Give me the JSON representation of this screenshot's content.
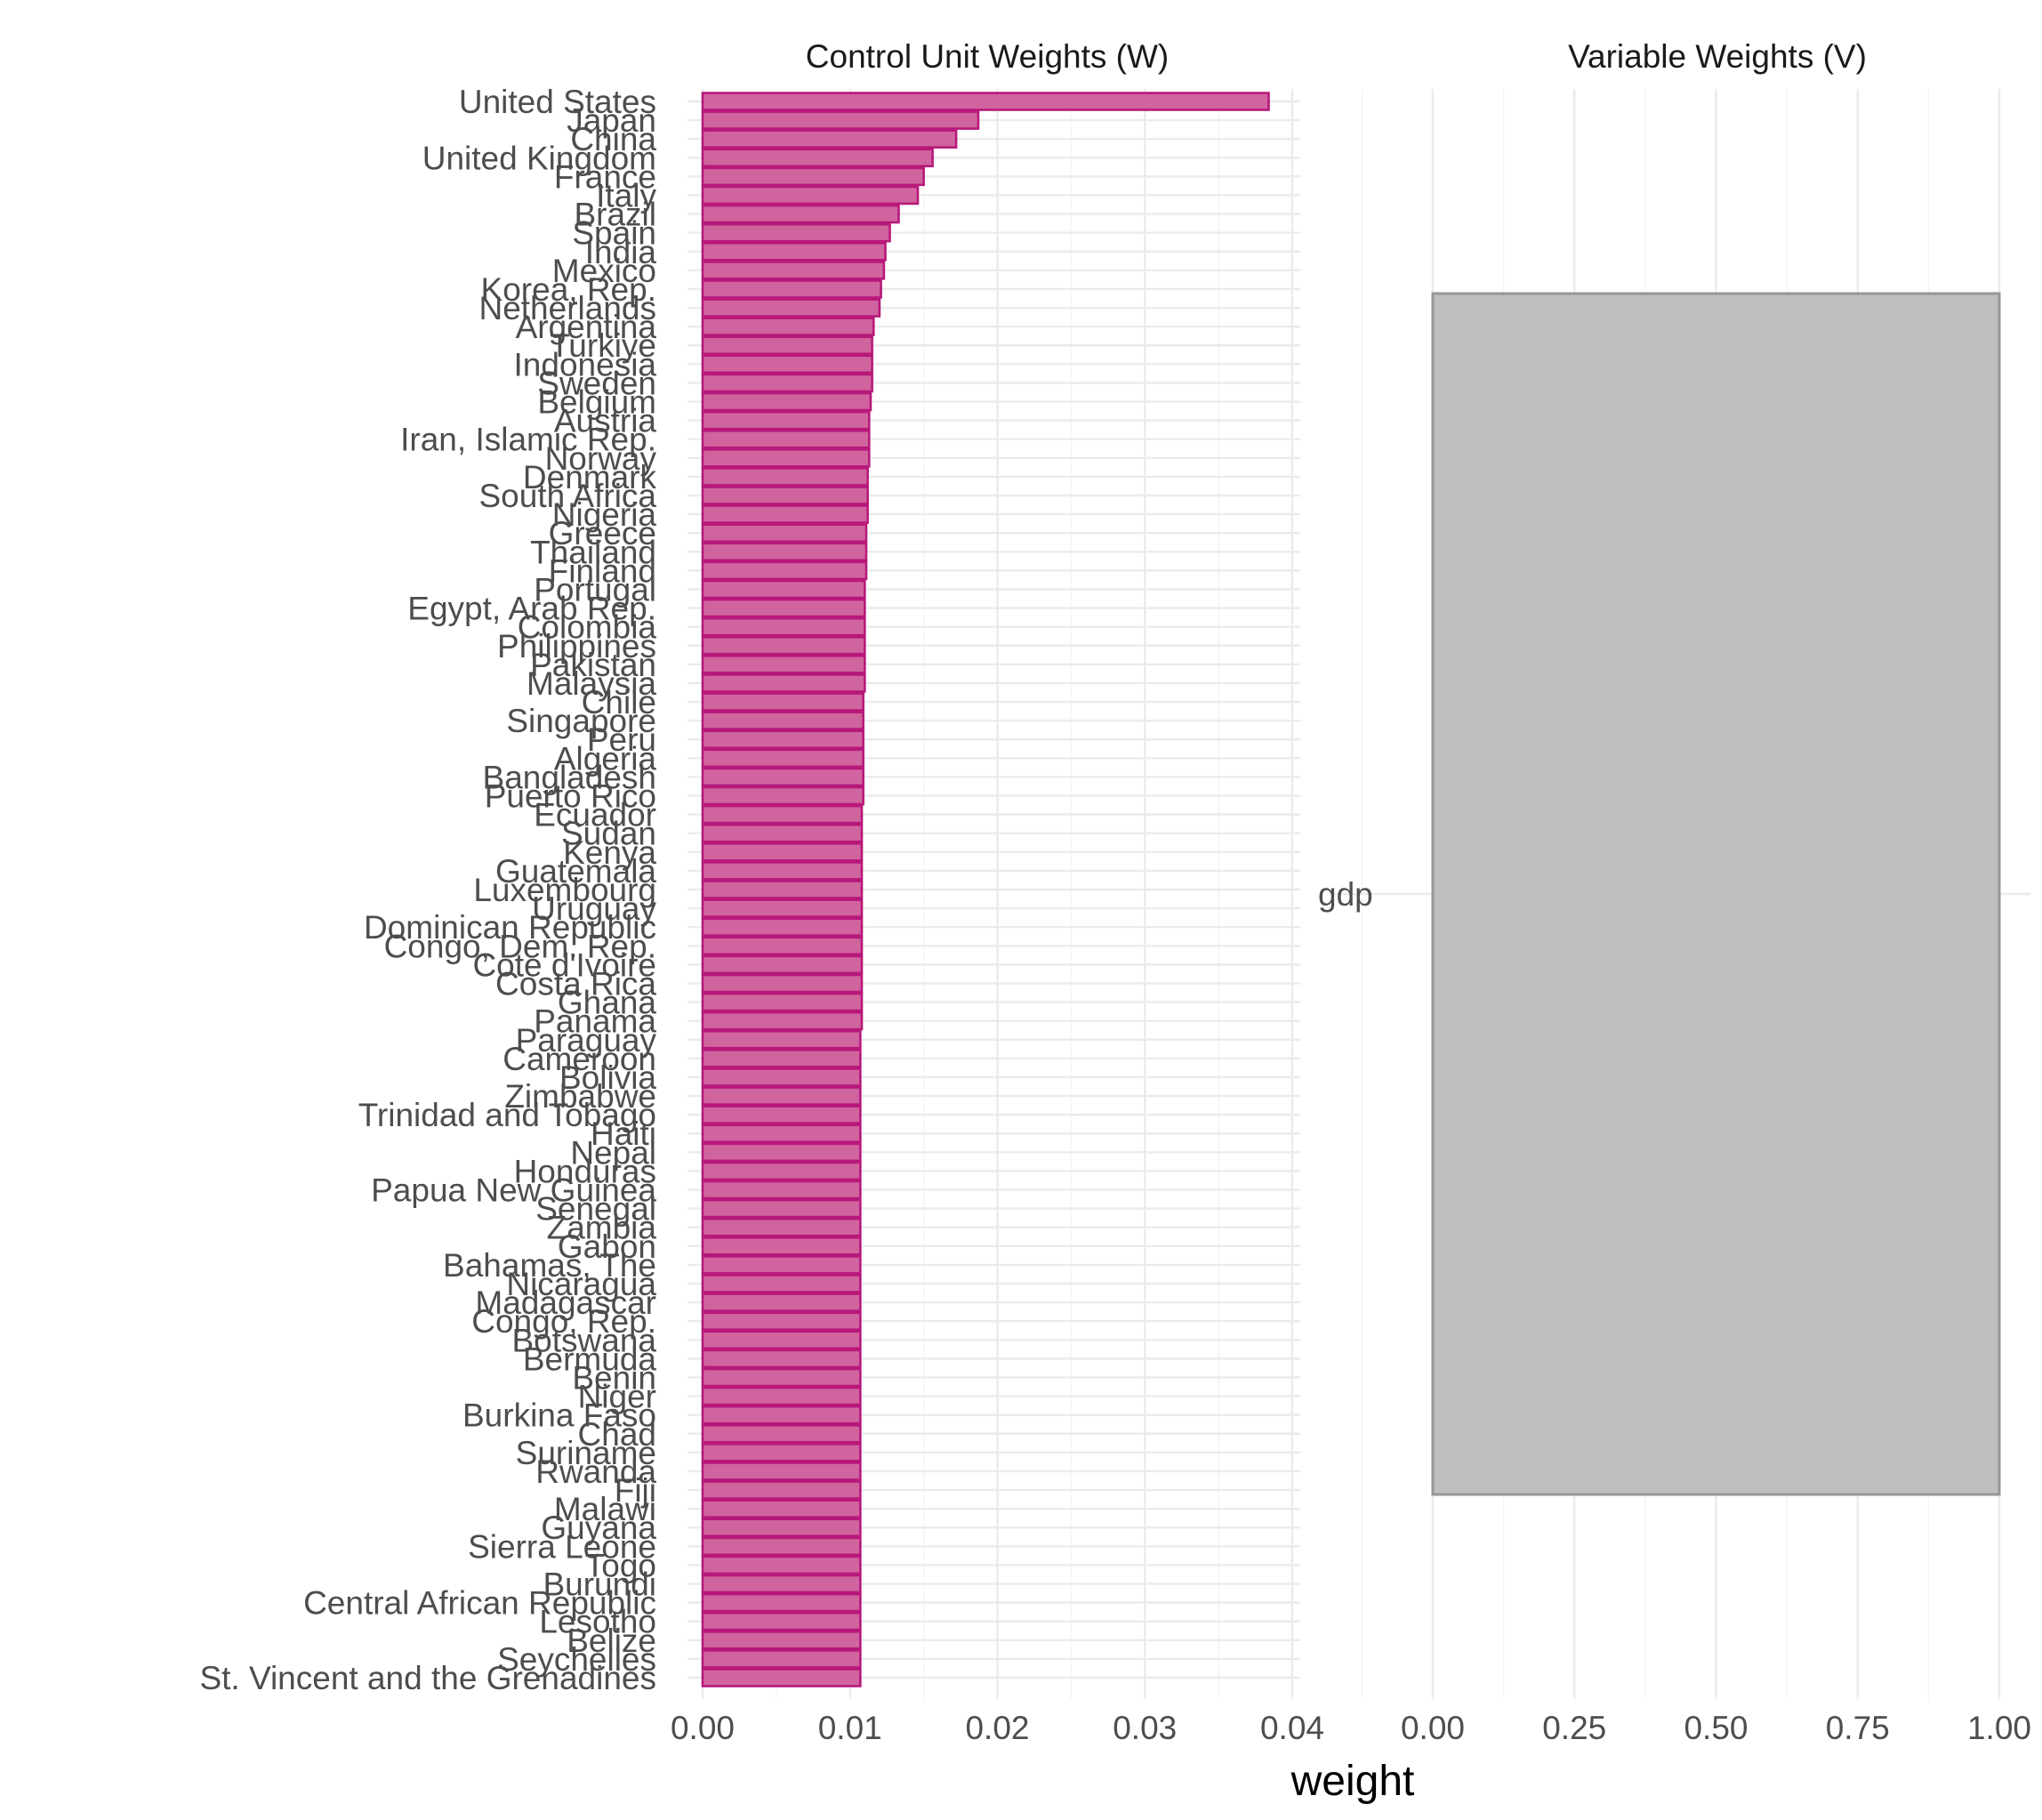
{
  "chart_data": [
    {
      "type": "bar",
      "orientation": "horizontal",
      "title": "Control Unit Weights (W)",
      "xlabel": "weight",
      "xlim": [
        0,
        0.04
      ],
      "xticks": [
        "0.00",
        "0.01",
        "0.02",
        "0.03",
        "0.04"
      ],
      "grid": true,
      "bar_fill": "#d0649f",
      "bar_stroke": "#b7197a",
      "categories": [
        "United States",
        "Japan",
        "China",
        "United Kingdom",
        "France",
        "Italy",
        "Brazil",
        "Spain",
        "India",
        "Mexico",
        "Korea, Rep.",
        "Netherlands",
        "Argentina",
        "Turkiye",
        "Indonesia",
        "Sweden",
        "Belgium",
        "Austria",
        "Iran, Islamic Rep.",
        "Norway",
        "Denmark",
        "South Africa",
        "Nigeria",
        "Greece",
        "Thailand",
        "Finland",
        "Portugal",
        "Egypt, Arab Rep.",
        "Colombia",
        "Philippines",
        "Pakistan",
        "Malaysia",
        "Chile",
        "Singapore",
        "Peru",
        "Algeria",
        "Bangladesh",
        "Puerto Rico",
        "Ecuador",
        "Sudan",
        "Kenya",
        "Guatemala",
        "Luxembourg",
        "Uruguay",
        "Dominican Republic",
        "Congo, Dem. Rep.",
        "Cote d'Ivoire",
        "Costa Rica",
        "Ghana",
        "Panama",
        "Paraguay",
        "Cameroon",
        "Bolivia",
        "Zimbabwe",
        "Trinidad and Tobago",
        "Haiti",
        "Nepal",
        "Honduras",
        "Papua New Guinea",
        "Senegal",
        "Zambia",
        "Gabon",
        "Bahamas, The",
        "Nicaragua",
        "Madagascar",
        "Congo, Rep.",
        "Botswana",
        "Bermuda",
        "Benin",
        "Niger",
        "Burkina Faso",
        "Chad",
        "Suriname",
        "Rwanda",
        "Fiji",
        "Malawi",
        "Guyana",
        "Sierra Leone",
        "Togo",
        "Burundi",
        "Central African Republic",
        "Lesotho",
        "Belize",
        "Seychelles",
        "St. Vincent and the Grenadines"
      ],
      "values": [
        0.0384,
        0.0187,
        0.0172,
        0.0156,
        0.015,
        0.0146,
        0.0133,
        0.0127,
        0.0124,
        0.0123,
        0.0121,
        0.012,
        0.0116,
        0.0115,
        0.0115,
        0.0115,
        0.0114,
        0.0113,
        0.0113,
        0.0113,
        0.0112,
        0.0112,
        0.0112,
        0.0111,
        0.0111,
        0.0111,
        0.011,
        0.011,
        0.011,
        0.011,
        0.011,
        0.011,
        0.0109,
        0.0109,
        0.0109,
        0.0109,
        0.0109,
        0.0109,
        0.0108,
        0.0108,
        0.0108,
        0.0108,
        0.0108,
        0.0108,
        0.0108,
        0.0108,
        0.0108,
        0.0108,
        0.0108,
        0.0108,
        0.0107,
        0.0107,
        0.0107,
        0.0107,
        0.0107,
        0.0107,
        0.0107,
        0.0107,
        0.0107,
        0.0107,
        0.0107,
        0.0107,
        0.0107,
        0.0107,
        0.0107,
        0.0107,
        0.0107,
        0.0107,
        0.0107,
        0.0107,
        0.0107,
        0.0107,
        0.0107,
        0.0107,
        0.0107,
        0.0107,
        0.0107,
        0.0107,
        0.0107,
        0.0107,
        0.0107,
        0.0107,
        0.0107,
        0.0107,
        0.0107
      ]
    },
    {
      "type": "bar",
      "orientation": "horizontal",
      "title": "Variable Weights (V)",
      "xlim": [
        0,
        1
      ],
      "xticks": [
        "0.00",
        "0.25",
        "0.50",
        "0.75",
        "1.00"
      ],
      "grid": true,
      "bar_fill": "#bebebe",
      "bar_stroke": "#969696",
      "categories": [
        "gdp"
      ],
      "values": [
        1.0
      ]
    }
  ]
}
